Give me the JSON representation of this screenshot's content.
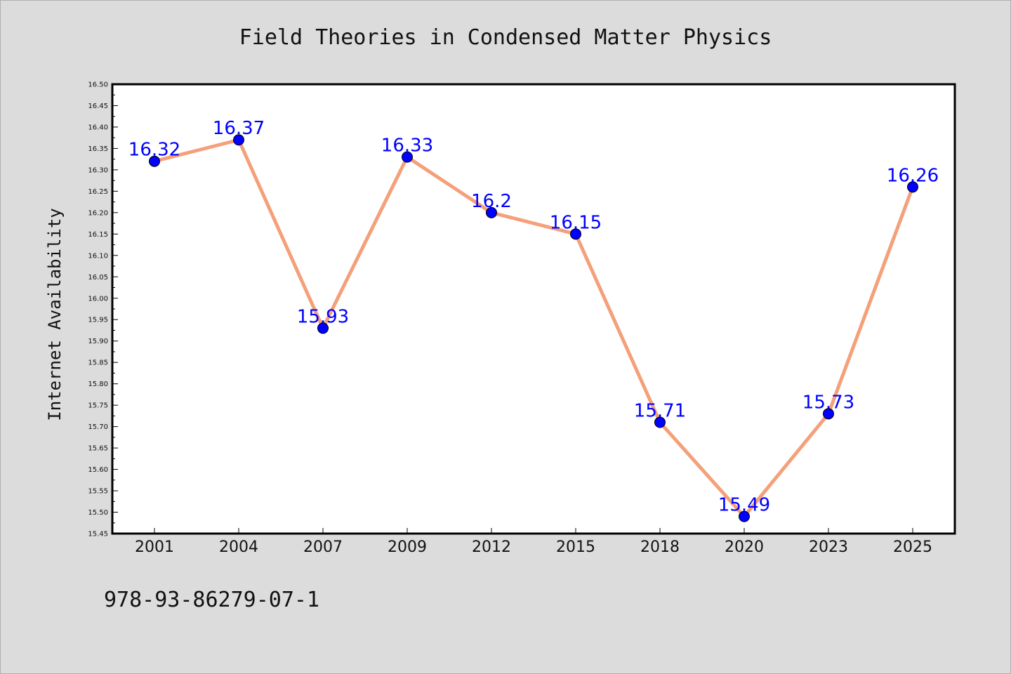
{
  "chart_data": {
    "type": "line",
    "title": "Field Theories in Condensed Matter Physics",
    "xlabel": "",
    "ylabel": "Internet Availability",
    "categories": [
      "2001",
      "2004",
      "2007",
      "2009",
      "2012",
      "2015",
      "2018",
      "2020",
      "2023",
      "2025"
    ],
    "series": [
      {
        "values": [
          16.32,
          16.37,
          15.93,
          16.33,
          16.2,
          16.15,
          15.71,
          15.49,
          15.73,
          16.26
        ],
        "labels": [
          "16.32",
          "16.37",
          "15.93",
          "16.33",
          "16.2",
          "16.15",
          "15.71",
          "15.49",
          "15.73",
          "16.26"
        ],
        "line_color": "#f4a07a",
        "marker_color": "#0000ff"
      }
    ],
    "ylim": [
      15.45,
      16.5
    ],
    "yticks": [
      "16.50",
      "16.45",
      "16.40",
      "16.35",
      "16.30",
      "16.25",
      "16.20",
      "16.15",
      "16.10",
      "16.05",
      "16.00",
      "15.95",
      "15.90",
      "15.85",
      "15.80",
      "15.75",
      "15.70",
      "15.65",
      "15.60",
      "15.55",
      "15.50",
      "15.45"
    ],
    "grid": false,
    "legend": "none",
    "background_color": "#dcdcdc",
    "plot_background_color": "#ffffff"
  },
  "footer": {
    "text": "978-93-86279-07-1"
  }
}
